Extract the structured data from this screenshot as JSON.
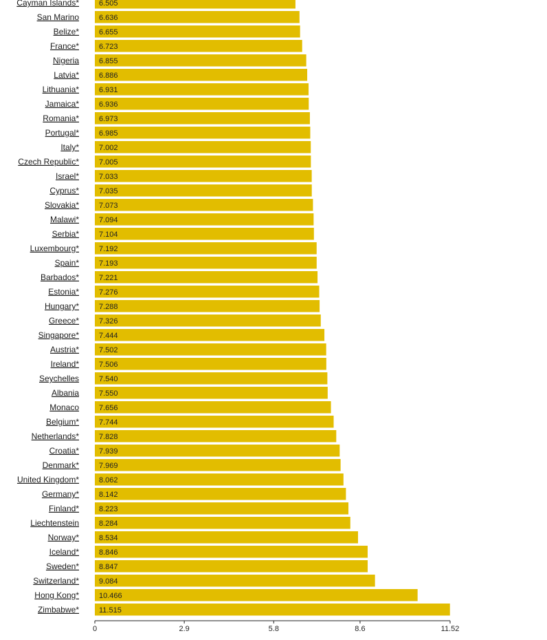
{
  "colors": {
    "bar": "#e2bd00",
    "text": "#1a1a1a"
  },
  "chart_data": {
    "type": "bar",
    "orientation": "horizontal",
    "title": "",
    "xlabel": "",
    "ylabel": "",
    "xlim": [
      0,
      11.52
    ],
    "x_ticks": [
      "0",
      "2.9",
      "5.8",
      "8.6",
      "11.52"
    ],
    "x_tick_values": [
      0,
      2.9,
      5.8,
      8.6,
      11.52
    ],
    "categories": [
      "Cayman Islands*",
      "San Marino",
      "Belize*",
      "France*",
      "Nigeria",
      "Latvia*",
      "Lithuania*",
      "Jamaica*",
      "Romania*",
      "Portugal*",
      "Italy*",
      "Czech Republic*",
      "Israel*",
      "Cyprus*",
      "Slovakia*",
      "Malawi*",
      "Serbia*",
      "Luxembourg*",
      "Spain*",
      "Barbados*",
      "Estonia*",
      "Hungary*",
      "Greece*",
      "Singapore*",
      "Austria*",
      "Ireland*",
      "Seychelles",
      "Albania",
      "Monaco",
      "Belgium*",
      "Netherlands*",
      "Croatia*",
      "Denmark*",
      "United Kingdom*",
      "Germany*",
      "Finland*",
      "Liechtenstein",
      "Norway*",
      "Iceland*",
      "Sweden*",
      "Switzerland*",
      "Hong Kong*",
      "Zimbabwe*"
    ],
    "values": [
      6.505,
      6.636,
      6.655,
      6.723,
      6.855,
      6.886,
      6.931,
      6.936,
      6.973,
      6.985,
      7.002,
      7.005,
      7.033,
      7.035,
      7.073,
      7.094,
      7.104,
      7.192,
      7.193,
      7.221,
      7.276,
      7.288,
      7.326,
      7.444,
      7.502,
      7.506,
      7.54,
      7.55,
      7.656,
      7.744,
      7.828,
      7.939,
      7.969,
      8.062,
      8.142,
      8.223,
      8.284,
      8.534,
      8.846,
      8.847,
      9.084,
      10.466,
      11.515
    ],
    "value_labels": [
      "6.505",
      "6.636",
      "6.655",
      "6.723",
      "6.855",
      "6.886",
      "6.931",
      "6.936",
      "6.973",
      "6.985",
      "7.002",
      "7.005",
      "7.033",
      "7.035",
      "7.073",
      "7.094",
      "7.104",
      "7.192",
      "7.193",
      "7.221",
      "7.276",
      "7.288",
      "7.326",
      "7.444",
      "7.502",
      "7.506",
      "7.540",
      "7.550",
      "7.656",
      "7.744",
      "7.828",
      "7.939",
      "7.969",
      "8.062",
      "8.142",
      "8.223",
      "8.284",
      "8.534",
      "8.846",
      "8.847",
      "9.084",
      "10.466",
      "11.515"
    ]
  }
}
